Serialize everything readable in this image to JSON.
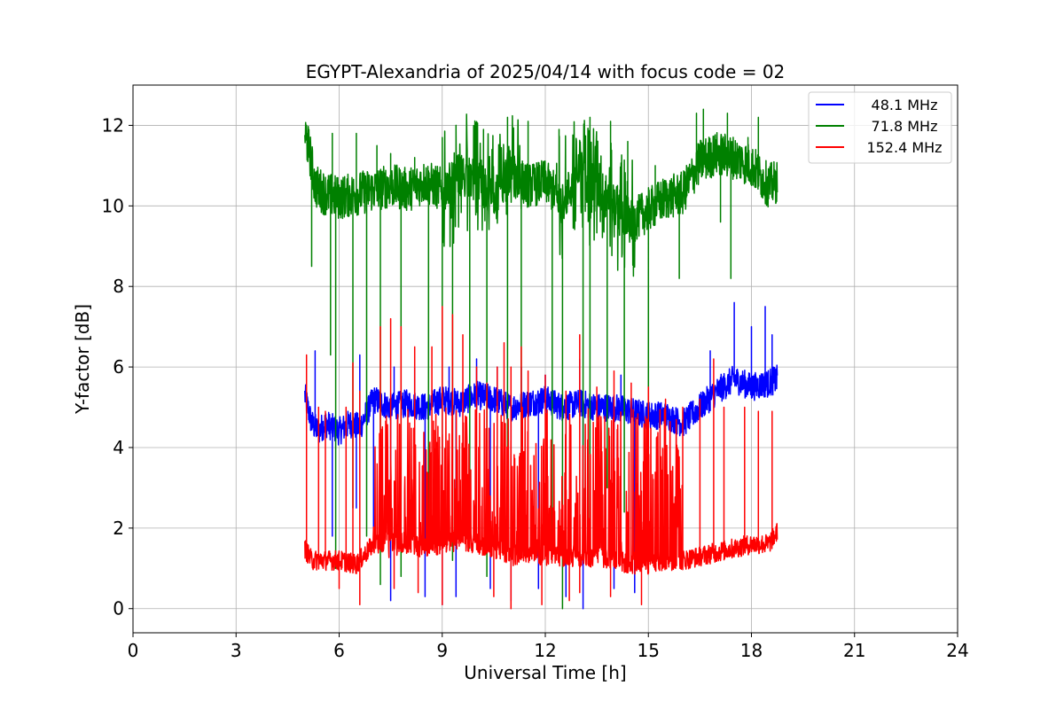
{
  "chart_data": {
    "type": "line",
    "title": "EGYPT-Alexandria of 2025/04/14 with focus code = 02",
    "xlabel": "Universal Time [h]",
    "ylabel": "Y-factor [dB]",
    "xlim": [
      0,
      24
    ],
    "ylim": [
      -0.6,
      13.0
    ],
    "xticks": [
      0,
      3,
      6,
      9,
      12,
      15,
      18,
      21,
      24
    ],
    "yticks": [
      0,
      2,
      4,
      6,
      8,
      10,
      12
    ],
    "xtick_labels": [
      "0",
      "3",
      "6",
      "9",
      "12",
      "15",
      "18",
      "21",
      "24"
    ],
    "ytick_labels": [
      "0",
      "2",
      "4",
      "6",
      "8",
      "10",
      "12"
    ],
    "grid": true,
    "legend_position": "top-right",
    "series": [
      {
        "name": "48.1 MHz",
        "color": "#0000ff",
        "x": [
          5.0,
          5.2,
          5.4,
          5.6,
          5.8,
          6.0,
          6.3,
          6.6,
          7.0,
          7.5,
          8.0,
          8.5,
          9.0,
          9.5,
          10.0,
          10.5,
          11.0,
          11.5,
          12.0,
          12.5,
          13.0,
          13.5,
          14.0,
          14.5,
          15.0,
          15.5,
          16.0,
          16.5,
          17.0,
          17.5,
          18.0,
          18.5,
          18.75
        ],
        "y": [
          5.3,
          4.6,
          4.4,
          4.6,
          4.5,
          4.4,
          4.6,
          4.5,
          5.2,
          5.0,
          5.1,
          5.0,
          5.2,
          5.1,
          5.3,
          5.2,
          5.0,
          5.1,
          5.2,
          5.0,
          5.1,
          5.0,
          5.0,
          4.9,
          4.8,
          4.8,
          4.6,
          5.0,
          5.4,
          5.7,
          5.5,
          5.6,
          5.7
        ],
        "spike_low_x": [
          5.8,
          6.5,
          7.0,
          7.5,
          8.5,
          9.0,
          9.4,
          10.4,
          11.0,
          11.8,
          12.6,
          13.1,
          14.0,
          14.6
        ],
        "spike_low_y": [
          1.8,
          2.5,
          1.5,
          0.2,
          0.3,
          0.1,
          0.3,
          0.5,
          0.2,
          0.5,
          0.3,
          0.0,
          0.5,
          0.4
        ],
        "spike_high_x": [
          5.3,
          6.6,
          7.6,
          8.2,
          9.2,
          10.0,
          10.6,
          11.3,
          12.0,
          13.0,
          14.2,
          16.8,
          17.5,
          18.0,
          18.4,
          18.6
        ],
        "spike_high_y": [
          6.4,
          6.3,
          6.0,
          6.0,
          6.0,
          6.2,
          6.0,
          6.0,
          5.8,
          6.2,
          5.8,
          6.4,
          7.6,
          7.0,
          7.5,
          6.8
        ]
      },
      {
        "name": "71.8 MHz",
        "color": "#008000",
        "x": [
          5.0,
          5.15,
          5.3,
          5.6,
          6.0,
          6.5,
          7.0,
          7.5,
          8.0,
          8.5,
          9.0,
          9.5,
          10.0,
          10.5,
          11.0,
          11.5,
          12.0,
          12.5,
          13.0,
          13.5,
          14.0,
          14.5,
          15.0,
          15.5,
          16.0,
          16.5,
          17.0,
          17.5,
          18.0,
          18.5,
          18.75
        ],
        "y": [
          11.8,
          11.3,
          10.5,
          10.3,
          10.2,
          10.3,
          10.4,
          10.5,
          10.4,
          10.6,
          10.4,
          10.8,
          10.6,
          10.2,
          10.8,
          10.5,
          10.6,
          10.1,
          10.8,
          10.4,
          10.1,
          9.6,
          9.9,
          10.2,
          10.3,
          11.1,
          11.3,
          11.2,
          11.0,
          10.5,
          10.6
        ],
        "spike_low_x": [
          5.2,
          5.75,
          5.9,
          6.4,
          6.8,
          7.2,
          7.8,
          8.6,
          9.0,
          9.3,
          9.8,
          10.3,
          10.9,
          11.3,
          12.2,
          12.5,
          13.1,
          13.3,
          13.8,
          14.3,
          15.0,
          15.9,
          17.1,
          17.4
        ],
        "spike_low_y": [
          8.5,
          6.3,
          1.0,
          2.5,
          1.8,
          0.6,
          0.8,
          1.5,
          2.5,
          1.2,
          1.5,
          0.8,
          2.0,
          1.8,
          1.2,
          0.0,
          1.5,
          1.8,
          3.0,
          2.4,
          4.5,
          8.2,
          9.6,
          8.2
        ],
        "spike_high_x": [
          5.05,
          5.8,
          6.5,
          7.1,
          7.5,
          8.2,
          9.0,
          9.4,
          10.2,
          10.9,
          11.5,
          12.4,
          13.3,
          13.9,
          14.4,
          15.2,
          16.4,
          16.6,
          17.3,
          17.9,
          18.2
        ],
        "spike_high_y": [
          12.0,
          11.8,
          11.8,
          11.5,
          11.3,
          11.2,
          11.7,
          12.0,
          11.9,
          12.2,
          12.1,
          11.9,
          12.2,
          12.1,
          11.6,
          11.0,
          12.3,
          12.4,
          12.3,
          11.7,
          12.2
        ]
      },
      {
        "name": "152.4 MHz",
        "color": "#ff0000",
        "x": [
          5.0,
          5.2,
          5.5,
          6.0,
          6.5,
          7.0,
          7.5,
          8.0,
          8.5,
          9.0,
          9.5,
          10.0,
          10.5,
          11.0,
          11.5,
          12.0,
          12.5,
          13.0,
          13.5,
          14.0,
          14.5,
          15.0,
          15.5,
          16.0,
          16.5,
          17.0,
          17.5,
          18.0,
          18.5,
          18.75
        ],
        "y": [
          1.5,
          1.2,
          1.2,
          1.2,
          1.1,
          1.6,
          1.7,
          1.6,
          1.5,
          1.6,
          1.7,
          1.6,
          1.5,
          1.3,
          1.4,
          1.3,
          1.3,
          1.2,
          1.3,
          1.2,
          1.1,
          1.1,
          1.2,
          1.2,
          1.3,
          1.4,
          1.5,
          1.6,
          1.6,
          1.9
        ],
        "spike_low_x": [
          6.0,
          6.6,
          7.6,
          8.3,
          9.0,
          10.5,
          11.0,
          11.9,
          12.7,
          13.0,
          13.9,
          14.8
        ],
        "spike_low_y": [
          0.5,
          0.1,
          0.5,
          0.4,
          0.1,
          0.3,
          0.0,
          0.1,
          0.2,
          0.4,
          0.3,
          0.1
        ],
        "spike_high_x": [
          5.05,
          5.4,
          5.6,
          6.2,
          6.4,
          6.6,
          7.2,
          7.5,
          7.8,
          8.2,
          8.7,
          9.0,
          9.3,
          9.6,
          10.0,
          10.3,
          10.6,
          10.8,
          11.0,
          11.3,
          11.5,
          12.0,
          12.6,
          13.0,
          13.5,
          14.0,
          14.5,
          15.0,
          15.5,
          16.0,
          16.5,
          16.9,
          17.2,
          17.8,
          18.2,
          18.6
        ],
        "spike_high_y": [
          6.3,
          5.0,
          4.9,
          5.0,
          6.1,
          5.4,
          7.0,
          7.2,
          7.0,
          6.5,
          6.5,
          7.5,
          7.3,
          6.8,
          6.0,
          5.6,
          6.0,
          6.6,
          6.0,
          6.5,
          5.9,
          5.8,
          5.4,
          6.8,
          5.5,
          5.9,
          5.6,
          5.5,
          5.2,
          5.0,
          5.2,
          6.2,
          5.0,
          5.0,
          4.9,
          4.9
        ]
      }
    ]
  }
}
